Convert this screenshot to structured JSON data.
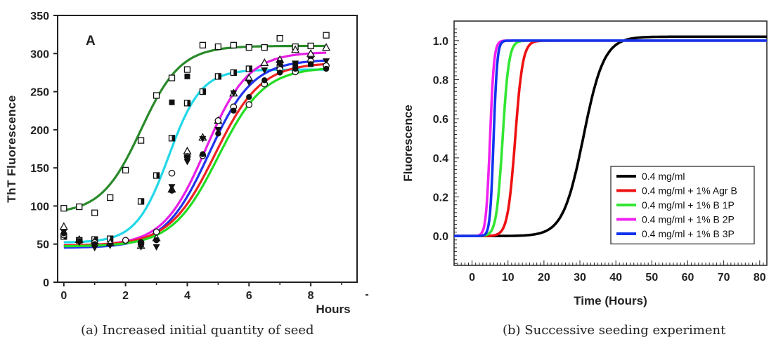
{
  "chart_data": [
    {
      "type": "scatter",
      "panel_letter": "A",
      "caption": "(a) Increased initial quantity of seed",
      "xlabel": "Hours",
      "ylabel": "ThT Fluorescence",
      "xlim": [
        -0.2,
        9.5
      ],
      "ylim": [
        0,
        350
      ],
      "xticks": [
        0,
        2,
        4,
        6,
        8
      ],
      "yticks": [
        0,
        50,
        100,
        150,
        200,
        250,
        300,
        350
      ],
      "x_axis_end_label": "-",
      "grid": false,
      "series": [
        {
          "marker": "open-square",
          "color": "#2a8a2a",
          "fit": {
            "bottom": 90,
            "top": 310,
            "midpoint": 2.5,
            "slope": 1.55
          },
          "points": [
            [
              0,
              97
            ],
            [
              0.5,
              99
            ],
            [
              1,
              91
            ],
            [
              1.5,
              111
            ],
            [
              2,
              147
            ],
            [
              2.5,
              186
            ],
            [
              3,
              245
            ],
            [
              3.5,
              268
            ],
            [
              4,
              279
            ],
            [
              4.5,
              311
            ],
            [
              5,
              309
            ],
            [
              5.5,
              311
            ],
            [
              6,
              308
            ],
            [
              6.5,
              308
            ],
            [
              7,
              320
            ],
            [
              7.5,
              309
            ],
            [
              8,
              310
            ],
            [
              8.5,
              324
            ]
          ]
        },
        {
          "marker": "half-square",
          "color": "#22d8e8",
          "fit": {
            "bottom": 52,
            "top": 279,
            "midpoint": 3.4,
            "slope": 1.9
          },
          "points": [
            [
              0,
              60
            ],
            [
              0.5,
              55
            ],
            [
              1,
              56
            ],
            [
              1.5,
              57
            ],
            [
              2.5,
              106
            ],
            [
              3,
              140
            ],
            [
              3.5,
              189
            ],
            [
              4,
              235
            ],
            [
              4.5,
              250
            ],
            [
              5,
              270
            ],
            [
              5.5,
              275
            ],
            [
              6,
              280
            ],
            [
              7,
              282
            ]
          ]
        },
        {
          "marker": "open-triangle",
          "color": "#e61ee6",
          "fit": {
            "bottom": 48,
            "top": 302,
            "midpoint": 4.6,
            "slope": 1.45
          },
          "points": [
            [
              0,
              73
            ],
            [
              0.5,
              56
            ],
            [
              1,
              54
            ],
            [
              1.5,
              52
            ],
            [
              2.5,
              48
            ],
            [
              3,
              58
            ],
            [
              3.5,
              122
            ],
            [
              4,
              172
            ],
            [
              4.5,
              190
            ],
            [
              5,
              212
            ],
            [
              5.5,
              248
            ],
            [
              6,
              268
            ],
            [
              6.5,
              288
            ],
            [
              7,
              292
            ],
            [
              7.5,
              305
            ],
            [
              8,
              300
            ],
            [
              8.5,
              308
            ]
          ]
        },
        {
          "marker": "filled-down-triangle",
          "color": "#2233ee",
          "fit": {
            "bottom": 45,
            "top": 292,
            "midpoint": 4.7,
            "slope": 1.4
          },
          "points": [
            [
              0,
              66
            ],
            [
              0.5,
              52
            ],
            [
              1,
              45
            ],
            [
              1.5,
              48
            ],
            [
              2.5,
              46
            ],
            [
              3,
              46
            ],
            [
              3.5,
              125
            ],
            [
              4,
              158
            ],
            [
              4.5,
              188
            ],
            [
              5,
              200
            ],
            [
              5.5,
              248
            ],
            [
              6,
              262
            ],
            [
              6.5,
              278
            ],
            [
              7,
              285
            ],
            [
              7.5,
              287
            ],
            [
              8,
              292
            ],
            [
              8.5,
              290
            ]
          ]
        },
        {
          "marker": "open-circle",
          "color": "#ee2222",
          "fit": {
            "bottom": 48,
            "top": 288,
            "midpoint": 4.9,
            "slope": 1.35
          },
          "points": [
            [
              0,
              62
            ],
            [
              0.5,
              55
            ],
            [
              1,
              52
            ],
            [
              2,
              55
            ],
            [
              2.5,
              52
            ],
            [
              3,
              66
            ],
            [
              3.5,
              143
            ],
            [
              4,
              165
            ],
            [
              4.5,
              166
            ],
            [
              5,
              212
            ],
            [
              5.5,
              230
            ],
            [
              6,
              233
            ],
            [
              6.5,
              260
            ],
            [
              7,
              279
            ],
            [
              7.5,
              276
            ],
            [
              8,
              290
            ],
            [
              8.5,
              284
            ]
          ]
        },
        {
          "marker": "filled-circle",
          "color": "#22dd22",
          "fit": {
            "bottom": 47,
            "top": 282,
            "midpoint": 5.0,
            "slope": 1.35
          },
          "points": [
            [
              0,
              64
            ],
            [
              0.5,
              54
            ],
            [
              1,
              50
            ],
            [
              2.5,
              52
            ],
            [
              3,
              55
            ],
            [
              3.5,
              120
            ],
            [
              4,
              164
            ],
            [
              4.5,
              168
            ],
            [
              5,
              195
            ],
            [
              5.5,
              225
            ],
            [
              6,
              243
            ],
            [
              6.5,
              265
            ],
            [
              7,
              275
            ],
            [
              7.5,
              280
            ],
            [
              8,
              286
            ],
            [
              8.5,
              280
            ]
          ]
        },
        {
          "marker": "filled-square",
          "color": "#111111",
          "fit": null,
          "points": [
            [
              3.5,
              236
            ],
            [
              4,
              270
            ],
            [
              7,
              288
            ],
            [
              7.5,
              285
            ],
            [
              8,
              286
            ]
          ]
        }
      ]
    },
    {
      "type": "line",
      "caption": "(b) Successive seeding experiment",
      "xlabel": "Time (Hours)",
      "ylabel": "Fluorescence",
      "xlim": [
        -5,
        82
      ],
      "ylim": [
        -0.15,
        1.1
      ],
      "xticks": [
        0,
        10,
        20,
        30,
        40,
        50,
        60,
        70,
        80
      ],
      "ytick_labels": [
        "0.0",
        "0.2",
        "0.4",
        "0.6",
        "0.8",
        "1.0"
      ],
      "grid": false,
      "legend_position": "center-right",
      "series": [
        {
          "name": "0.4 mg/ml",
          "color": "#000000",
          "fit": {
            "bottom": 0,
            "top": 1.02,
            "midpoint": 31,
            "slope": 0.35
          }
        },
        {
          "name": "0.4 mg/ml + 1% Agr B",
          "color": "#ee1111",
          "fit": {
            "bottom": 0,
            "top": 1.0,
            "midpoint": 12,
            "slope": 0.95
          }
        },
        {
          "name": "0.4 mg/ml + 1% B 1P",
          "color": "#33e633",
          "fit": {
            "bottom": 0,
            "top": 1.0,
            "midpoint": 8.5,
            "slope": 1.15
          }
        },
        {
          "name": "0.4 mg/ml + 1% B 2P",
          "color": "#f020f0",
          "fit": {
            "bottom": 0,
            "top": 1.0,
            "midpoint": 5.0,
            "slope": 1.8
          }
        },
        {
          "name": "0.4 mg/ml + 1% B 3P",
          "color": "#1133ee",
          "fit": {
            "bottom": 0,
            "top": 1.0,
            "midpoint": 6.0,
            "slope": 2.0
          }
        }
      ]
    }
  ]
}
